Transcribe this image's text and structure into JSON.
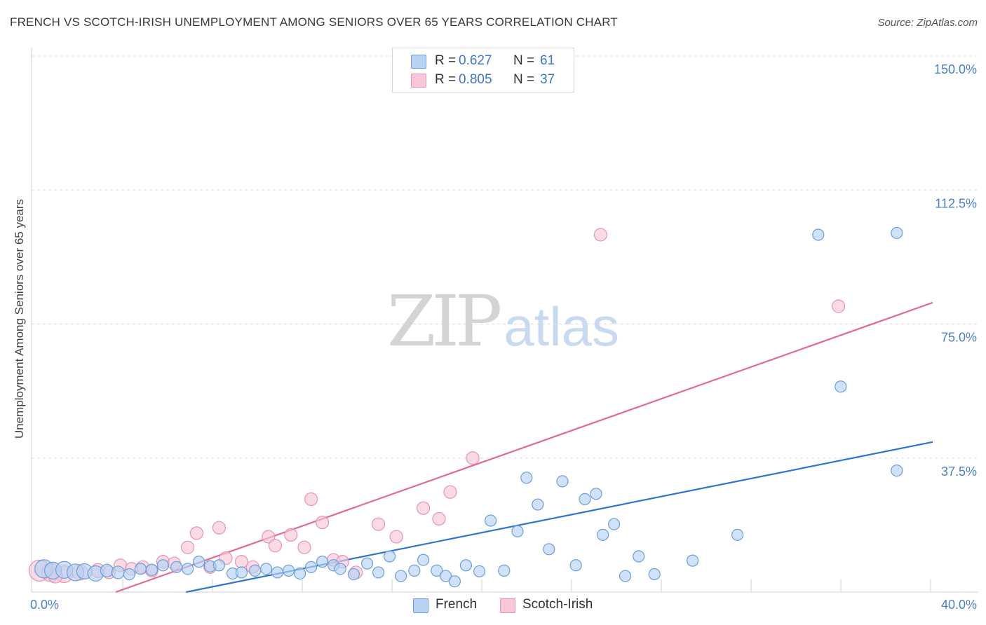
{
  "title": "FRENCH VS SCOTCH-IRISH UNEMPLOYMENT AMONG SENIORS OVER 65 YEARS CORRELATION CHART",
  "source": "Source: ZipAtlas.com",
  "watermark": {
    "zip": "ZIP",
    "atlas": "atlas"
  },
  "colors": {
    "french_fill": "#b7d2f3",
    "french_edge": "#6a9edc",
    "french_line": "#2f74d0",
    "scotch_fill": "#f8c6d6",
    "scotch_edge": "#e893b0",
    "scotch_line": "#e06a95",
    "tick_label": "#4a7fc8",
    "grid": "#dddddd"
  },
  "legend": {
    "rows": [
      {
        "name": "French",
        "r_label": "R =",
        "r_value": "0.627",
        "n_label": "N =",
        "n_value": "61"
      },
      {
        "name": "Scotch-Irish",
        "r_label": "R =",
        "r_value": "0.805",
        "n_label": "N =",
        "n_value": "37"
      }
    ]
  },
  "bottom_legend": [
    "French",
    "Scotch-Irish"
  ],
  "chart_data": {
    "type": "scatter",
    "title": "FRENCH VS SCOTCH-IRISH UNEMPLOYMENT AMONG SENIORS OVER 65 YEARS CORRELATION CHART",
    "xlabel": "",
    "ylabel": "Unemployment Among Seniors over 65 years",
    "xlim": [
      0,
      40
    ],
    "ylim": [
      0,
      150
    ],
    "x_tick_labels": [
      "0.0%",
      "40.0%"
    ],
    "y_ticks": [
      37.5,
      75.0,
      112.5,
      150.0
    ],
    "y_tick_labels": [
      "37.5%",
      "75.0%",
      "112.5%",
      "150.0%"
    ],
    "x_minor_ticks": [
      4,
      8,
      12,
      16,
      20,
      24,
      28,
      32,
      36,
      40
    ],
    "grid": true,
    "series": [
      {
        "name": "French",
        "trend": {
          "x": [
            0,
            40
          ],
          "y": [
            -8.5,
            42.0
          ]
        },
        "points": [
          {
            "x": 0.4,
            "y": 6.5,
            "s": 13
          },
          {
            "x": 0.8,
            "y": 6.0,
            "s": 12
          },
          {
            "x": 1.3,
            "y": 6.2,
            "s": 12
          },
          {
            "x": 1.8,
            "y": 5.5,
            "s": 12
          },
          {
            "x": 2.2,
            "y": 5.8,
            "s": 11
          },
          {
            "x": 2.7,
            "y": 5.2,
            "s": 11
          },
          {
            "x": 3.2,
            "y": 6.0,
            "s": 9
          },
          {
            "x": 3.7,
            "y": 5.5,
            "s": 9
          },
          {
            "x": 4.2,
            "y": 5.0,
            "s": 8
          },
          {
            "x": 4.7,
            "y": 6.5,
            "s": 8
          },
          {
            "x": 5.2,
            "y": 6.2,
            "s": 8
          },
          {
            "x": 5.7,
            "y": 7.5,
            "s": 8
          },
          {
            "x": 6.3,
            "y": 7.0,
            "s": 8
          },
          {
            "x": 6.8,
            "y": 6.5,
            "s": 8
          },
          {
            "x": 7.3,
            "y": 8.5,
            "s": 8
          },
          {
            "x": 7.8,
            "y": 7.2,
            "s": 8
          },
          {
            "x": 8.2,
            "y": 7.5,
            "s": 8
          },
          {
            "x": 8.8,
            "y": 5.2,
            "s": 8
          },
          {
            "x": 9.2,
            "y": 5.5,
            "s": 8
          },
          {
            "x": 9.8,
            "y": 6.0,
            "s": 8
          },
          {
            "x": 10.3,
            "y": 6.5,
            "s": 8
          },
          {
            "x": 10.8,
            "y": 5.5,
            "s": 8
          },
          {
            "x": 11.3,
            "y": 6.0,
            "s": 8
          },
          {
            "x": 11.8,
            "y": 5.2,
            "s": 8
          },
          {
            "x": 12.3,
            "y": 7.0,
            "s": 8
          },
          {
            "x": 12.8,
            "y": 8.5,
            "s": 8
          },
          {
            "x": 13.3,
            "y": 7.5,
            "s": 8
          },
          {
            "x": 13.6,
            "y": 6.5,
            "s": 8
          },
          {
            "x": 14.2,
            "y": 5.0,
            "s": 8
          },
          {
            "x": 14.8,
            "y": 8.0,
            "s": 8
          },
          {
            "x": 15.3,
            "y": 5.5,
            "s": 8
          },
          {
            "x": 15.8,
            "y": 10.0,
            "s": 8
          },
          {
            "x": 16.3,
            "y": 4.5,
            "s": 8
          },
          {
            "x": 16.9,
            "y": 6.0,
            "s": 8
          },
          {
            "x": 17.3,
            "y": 9.0,
            "s": 8
          },
          {
            "x": 17.9,
            "y": 6.0,
            "s": 8
          },
          {
            "x": 18.3,
            "y": 4.5,
            "s": 8
          },
          {
            "x": 18.7,
            "y": 3.0,
            "s": 8
          },
          {
            "x": 19.2,
            "y": 7.5,
            "s": 8
          },
          {
            "x": 19.8,
            "y": 5.8,
            "s": 8
          },
          {
            "x": 20.3,
            "y": 20.0,
            "s": 8
          },
          {
            "x": 20.9,
            "y": 6.0,
            "s": 8
          },
          {
            "x": 21.5,
            "y": 17.0,
            "s": 8
          },
          {
            "x": 21.9,
            "y": 32.0,
            "s": 8
          },
          {
            "x": 22.4,
            "y": 24.5,
            "s": 8
          },
          {
            "x": 22.9,
            "y": 12.0,
            "s": 8
          },
          {
            "x": 23.5,
            "y": 31.0,
            "s": 8
          },
          {
            "x": 24.1,
            "y": 7.5,
            "s": 8
          },
          {
            "x": 24.5,
            "y": 26.0,
            "s": 8
          },
          {
            "x": 25.0,
            "y": 27.5,
            "s": 8
          },
          {
            "x": 25.3,
            "y": 16.0,
            "s": 8
          },
          {
            "x": 25.8,
            "y": 19.0,
            "s": 8
          },
          {
            "x": 26.3,
            "y": 4.5,
            "s": 8
          },
          {
            "x": 26.9,
            "y": 10.0,
            "s": 8
          },
          {
            "x": 27.6,
            "y": 5.0,
            "s": 8
          },
          {
            "x": 29.3,
            "y": 8.8,
            "s": 8
          },
          {
            "x": 31.3,
            "y": 16.0,
            "s": 8
          },
          {
            "x": 34.9,
            "y": 100.0,
            "s": 8
          },
          {
            "x": 35.9,
            "y": 57.5,
            "s": 8
          },
          {
            "x": 38.4,
            "y": 100.5,
            "s": 8
          },
          {
            "x": 38.4,
            "y": 34.0,
            "s": 8
          }
        ]
      },
      {
        "name": "Scotch-Irish",
        "trend": {
          "x": [
            0,
            40
          ],
          "y": [
            -8.0,
            81.0
          ]
        },
        "points": [
          {
            "x": 0.2,
            "y": 6.0,
            "s": 15
          },
          {
            "x": 0.7,
            "y": 5.5,
            "s": 13
          },
          {
            "x": 1.3,
            "y": 5.0,
            "s": 12
          },
          {
            "x": 2.0,
            "y": 5.5,
            "s": 11
          },
          {
            "x": 2.8,
            "y": 6.0,
            "s": 10
          },
          {
            "x": 3.3,
            "y": 5.5,
            "s": 9
          },
          {
            "x": 3.8,
            "y": 7.5,
            "s": 9
          },
          {
            "x": 4.3,
            "y": 6.5,
            "s": 9
          },
          {
            "x": 4.8,
            "y": 7.0,
            "s": 9
          },
          {
            "x": 5.2,
            "y": 6.0,
            "s": 9
          },
          {
            "x": 5.7,
            "y": 8.5,
            "s": 9
          },
          {
            "x": 6.2,
            "y": 8.0,
            "s": 9
          },
          {
            "x": 6.8,
            "y": 12.5,
            "s": 9
          },
          {
            "x": 7.2,
            "y": 16.5,
            "s": 9
          },
          {
            "x": 7.8,
            "y": 7.0,
            "s": 9
          },
          {
            "x": 8.2,
            "y": 18.0,
            "s": 9
          },
          {
            "x": 8.5,
            "y": 9.5,
            "s": 9
          },
          {
            "x": 9.2,
            "y": 8.5,
            "s": 9
          },
          {
            "x": 9.7,
            "y": 7.0,
            "s": 9
          },
          {
            "x": 10.4,
            "y": 15.5,
            "s": 9
          },
          {
            "x": 10.7,
            "y": 13.0,
            "s": 9
          },
          {
            "x": 11.4,
            "y": 16.0,
            "s": 9
          },
          {
            "x": 12.0,
            "y": 12.5,
            "s": 9
          },
          {
            "x": 12.3,
            "y": 26.0,
            "s": 9
          },
          {
            "x": 12.8,
            "y": 19.5,
            "s": 9
          },
          {
            "x": 13.3,
            "y": 9.0,
            "s": 9
          },
          {
            "x": 13.7,
            "y": 8.5,
            "s": 9
          },
          {
            "x": 14.3,
            "y": 5.5,
            "s": 9
          },
          {
            "x": 15.3,
            "y": 19.0,
            "s": 9
          },
          {
            "x": 16.1,
            "y": 15.5,
            "s": 9
          },
          {
            "x": 17.3,
            "y": 23.5,
            "s": 9
          },
          {
            "x": 18.0,
            "y": 20.5,
            "s": 9
          },
          {
            "x": 18.5,
            "y": 28.0,
            "s": 9
          },
          {
            "x": 19.5,
            "y": 37.5,
            "s": 9
          },
          {
            "x": 25.2,
            "y": 100.0,
            "s": 9
          },
          {
            "x": 35.8,
            "y": 80.0,
            "s": 9
          },
          {
            "x": 0.9,
            "y": 4.5,
            "s": 10
          }
        ]
      }
    ]
  }
}
